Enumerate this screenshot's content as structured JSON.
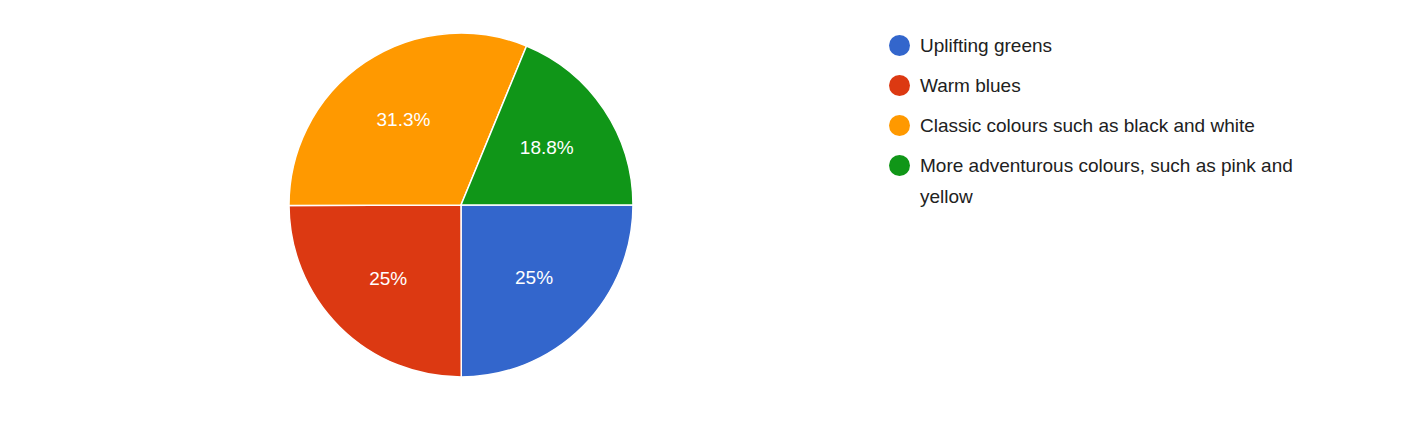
{
  "chart_data": {
    "type": "pie",
    "categories": [
      "Uplifting greens",
      "Warm blues",
      "Classic colours such as black and white",
      "More adventurous colours, such as pink and yellow"
    ],
    "values": [
      25,
      25,
      31.3,
      18.8
    ],
    "value_labels": [
      "25%",
      "25%",
      "31.3%",
      "18.8%"
    ],
    "colors": [
      "#3366cc",
      "#dc3912",
      "#ff9900",
      "#109618"
    ],
    "data_labels": true,
    "legend": "right"
  }
}
